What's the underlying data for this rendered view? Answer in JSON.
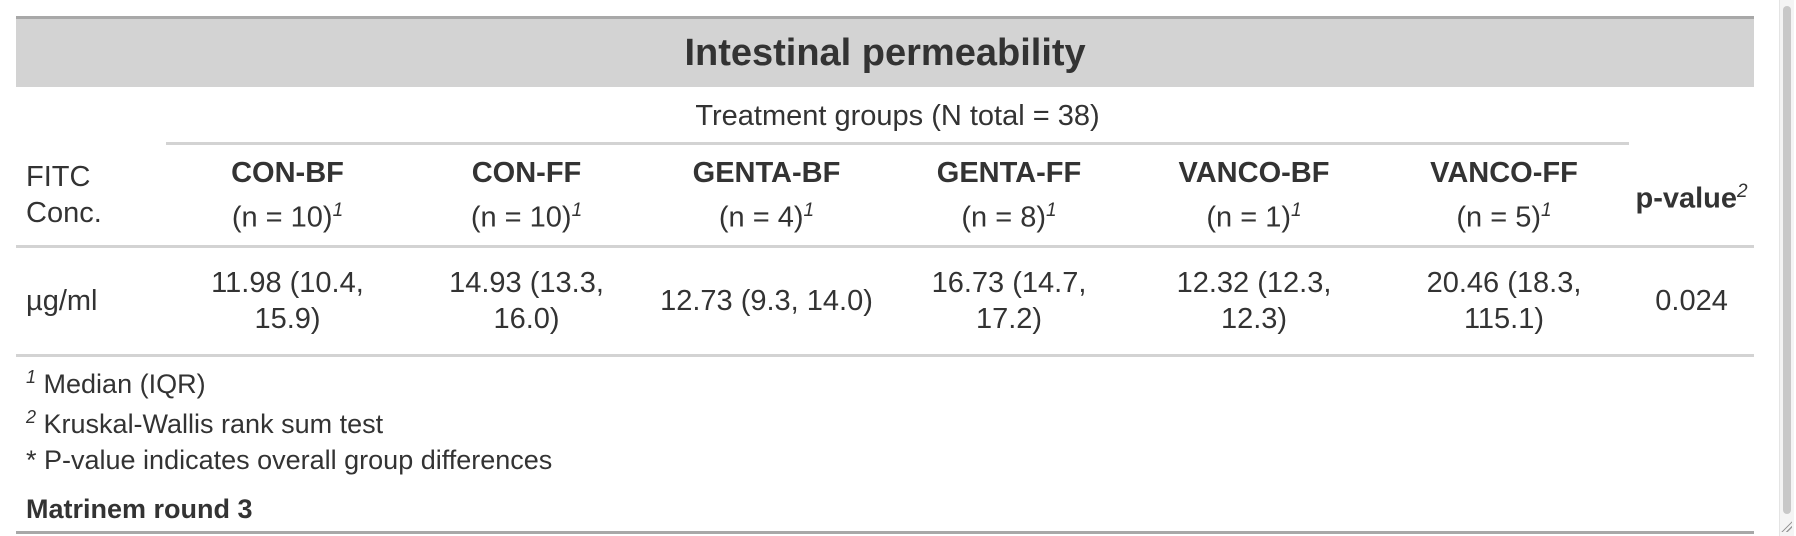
{
  "table": {
    "title": "Intestinal permeability",
    "spanner": "Treatment groups (N total = 38)",
    "stub_header": "FITC Conc.",
    "columns": [
      {
        "group": "CON-BF",
        "n": "(n = 10)",
        "fn": "1"
      },
      {
        "group": "CON-FF",
        "n": "(n = 10)",
        "fn": "1"
      },
      {
        "group": "GENTA-BF",
        "n": "(n = 4)",
        "fn": "1"
      },
      {
        "group": "GENTA-FF",
        "n": "(n = 8)",
        "fn": "1"
      },
      {
        "group": "VANCO-BF",
        "n": "(n = 1)",
        "fn": "1"
      },
      {
        "group": "VANCO-FF",
        "n": "(n = 5)",
        "fn": "1"
      }
    ],
    "pvalue_header": "p-value",
    "pvalue_fn": "2",
    "rows": [
      {
        "label": "µg/ml",
        "values": [
          "11.98 (10.4, 15.9)",
          "14.93 (13.3, 16.0)",
          "12.73 (9.3, 14.0)",
          "16.73 (14.7, 17.2)",
          "12.32 (12.3, 12.3)",
          "20.46 (18.3, 115.1)"
        ],
        "pvalue": "0.024"
      }
    ]
  },
  "footnotes": [
    {
      "mark": "1",
      "text": "Median (IQR)"
    },
    {
      "mark": "2",
      "text": "Kruskal-Wallis rank sum test"
    }
  ],
  "note": "* P-value indicates overall group differences",
  "source": "Matrinem round 3",
  "colors": {
    "title_bg": "#d3d3d3",
    "rule": "#a8a8a8",
    "text": "#333333"
  }
}
